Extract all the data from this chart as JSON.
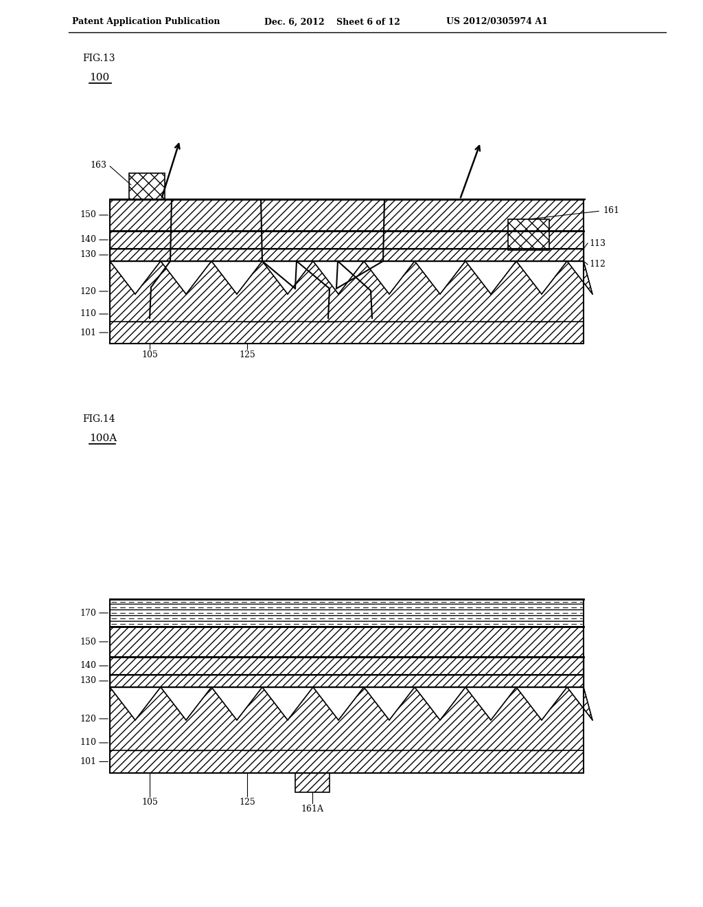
{
  "bg_color": "#ffffff",
  "header_text": "Patent Application Publication",
  "header_date": "Dec. 6, 2012",
  "header_sheet": "Sheet 6 of 12",
  "header_patent": "US 2012/0305974 A1",
  "fig13_label": "FIG.13",
  "fig13_ref": "100",
  "fig14_label": "FIG.14",
  "fig14_ref": "100A"
}
